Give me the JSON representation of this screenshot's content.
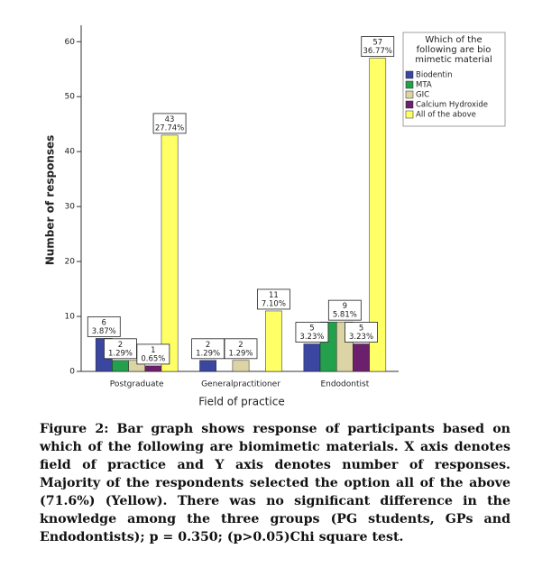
{
  "chart_data": {
    "type": "bar",
    "categories": [
      "Postgraduate",
      "Generalpractitioner",
      "Endodontist"
    ],
    "x_label": "Field of practice",
    "y_label": "Number of responses",
    "legend_title": [
      "Which of the",
      "following are bio",
      "mimetic material"
    ],
    "ylim": [
      0,
      63
    ],
    "yticks": [
      0,
      10,
      20,
      30,
      40,
      50,
      60
    ],
    "series": [
      {
        "name": "Biodentin",
        "color": "#3a46a0",
        "values": [
          6,
          2,
          5
        ],
        "value_labels": [
          [
            "6",
            "3.87%"
          ],
          [
            "2",
            "1.29%"
          ],
          [
            "5",
            "3.23%"
          ]
        ]
      },
      {
        "name": "MTA",
        "color": "#22a04c",
        "values": [
          2,
          0,
          9
        ],
        "value_labels": [
          [
            "2",
            "1.29%"
          ],
          null,
          null
        ]
      },
      {
        "name": "GIC",
        "color": "#dcd4a4",
        "values": [
          2,
          2,
          9
        ],
        "value_labels": [
          null,
          [
            "2",
            "1.29%"
          ],
          [
            "9",
            "5.81%"
          ]
        ]
      },
      {
        "name": "Calcium Hydroxide",
        "color": "#6c1f6c",
        "values": [
          1,
          0,
          5
        ],
        "value_labels": [
          [
            "1",
            "0.65%"
          ],
          null,
          [
            "5",
            "3.23%"
          ]
        ]
      },
      {
        "name": "All of the above",
        "color": "#ffff66",
        "values": [
          43,
          11,
          57
        ],
        "value_labels": [
          [
            "43",
            "27.74%"
          ],
          [
            "11",
            "7.10%"
          ],
          [
            "57",
            "36.77%"
          ]
        ]
      }
    ]
  },
  "caption": "Figure 2: Bar graph shows response of participants based on which of the following are biomimetic materials. X axis denotes field of practice and Y axis denotes number of responses. Majority of the respondents selected the option all of the above (71.6%) (Yellow). There was no significant difference in the knowledge among the three groups (PG students, GPs and Endodontists); p = 0.350; (p>0.05)Chi square test."
}
